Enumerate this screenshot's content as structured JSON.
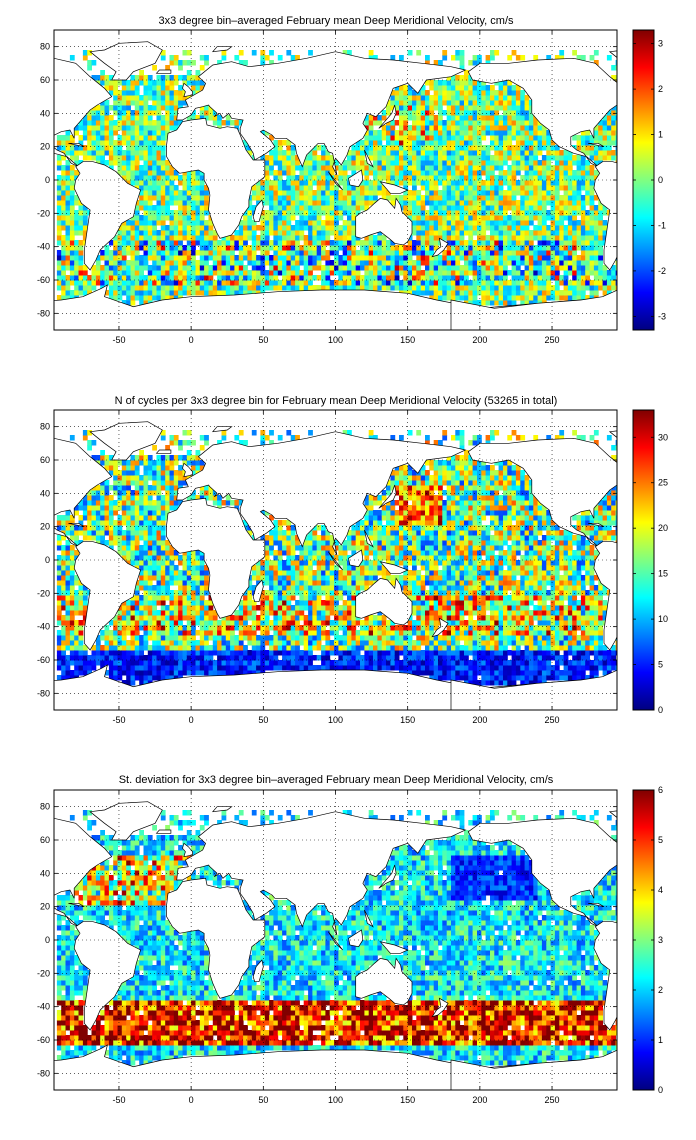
{
  "colormap": "jet",
  "land_color": "#ffffff",
  "chart_data": [
    {
      "type": "heatmap",
      "title": "3x3 degree bin–averaged February mean Deep Meridional Velocity, cm/s",
      "xlim": [
        -95,
        295
      ],
      "ylim": [
        -90,
        90
      ],
      "xticks": [
        -50,
        0,
        50,
        100,
        150,
        200,
        250
      ],
      "yticks": [
        -80,
        -60,
        -40,
        -20,
        0,
        20,
        40,
        60,
        80
      ],
      "bin_size_deg": 3,
      "clim": [
        -3.3,
        3.3
      ],
      "colorbar_ticks": [
        -3,
        -2,
        -1,
        0,
        1,
        2,
        3
      ],
      "grid": true,
      "field": "mean_velocity"
    },
    {
      "type": "heatmap",
      "title": "N of cycles per 3x3 degree bin for February mean Deep Meridional Velocity (53265 in total)",
      "xlim": [
        -95,
        295
      ],
      "ylim": [
        -90,
        90
      ],
      "xticks": [
        -50,
        0,
        50,
        100,
        150,
        200,
        250
      ],
      "yticks": [
        -80,
        -60,
        -40,
        -20,
        0,
        20,
        40,
        60,
        80
      ],
      "bin_size_deg": 3,
      "clim": [
        0,
        33
      ],
      "colorbar_ticks": [
        0,
        5,
        10,
        15,
        20,
        25,
        30
      ],
      "grid": true,
      "field": "cycle_count"
    },
    {
      "type": "heatmap",
      "title": "St. deviation for 3x3 degree bin–averaged February mean Deep Meridional Velocity, cm/s",
      "xlim": [
        -95,
        295
      ],
      "ylim": [
        -90,
        90
      ],
      "xticks": [
        -50,
        0,
        50,
        100,
        150,
        200,
        250
      ],
      "yticks": [
        -80,
        -60,
        -40,
        -20,
        0,
        20,
        40,
        60,
        80
      ],
      "bin_size_deg": 3,
      "clim": [
        0,
        6
      ],
      "colorbar_ticks": [
        0,
        1,
        2,
        3,
        4,
        5,
        6
      ],
      "grid": true,
      "field": "std_velocity"
    }
  ]
}
